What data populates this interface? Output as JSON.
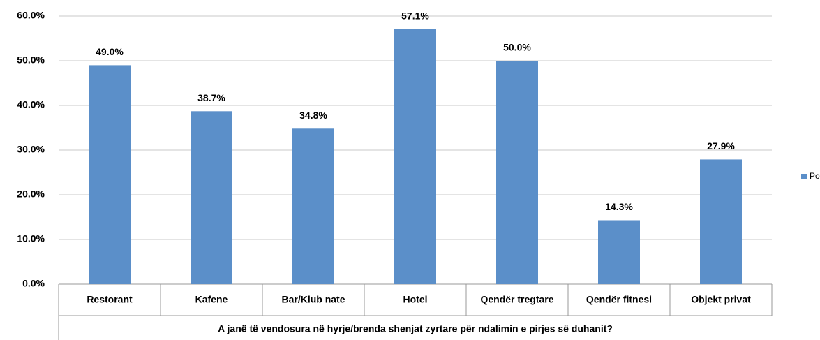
{
  "chart_data": {
    "type": "bar",
    "x_label": "A janë të vendosura në hyrje/brenda shenjat zyrtare për ndalimin e pirjes së duhanit?",
    "categories": [
      "Restorant",
      "Kafene",
      "Bar/Klub nate",
      "Hotel",
      "Qendër tregtare",
      "Qendër fitnesi",
      "Objekt privat"
    ],
    "series": [
      {
        "name": "Po",
        "color": "#5b8fc9",
        "values": [
          49.0,
          38.7,
          34.8,
          57.1,
          50.0,
          14.3,
          27.9
        ],
        "value_labels": [
          "49.0%",
          "38.7%",
          "34.8%",
          "57.1%",
          "50.0%",
          "14.3%",
          "27.9%"
        ]
      }
    ],
    "ylim": [
      0,
      60
    ],
    "yticks": [
      {
        "value": 0,
        "label": "0.0%"
      },
      {
        "value": 10,
        "label": "10.0%"
      },
      {
        "value": 20,
        "label": "20.0%"
      },
      {
        "value": 30,
        "label": "30.0%"
      },
      {
        "value": 40,
        "label": "40.0%"
      },
      {
        "value": 50,
        "label": "50.0%"
      },
      {
        "value": 60,
        "label": "60.0%"
      }
    ],
    "grid": true,
    "legend": "right"
  }
}
